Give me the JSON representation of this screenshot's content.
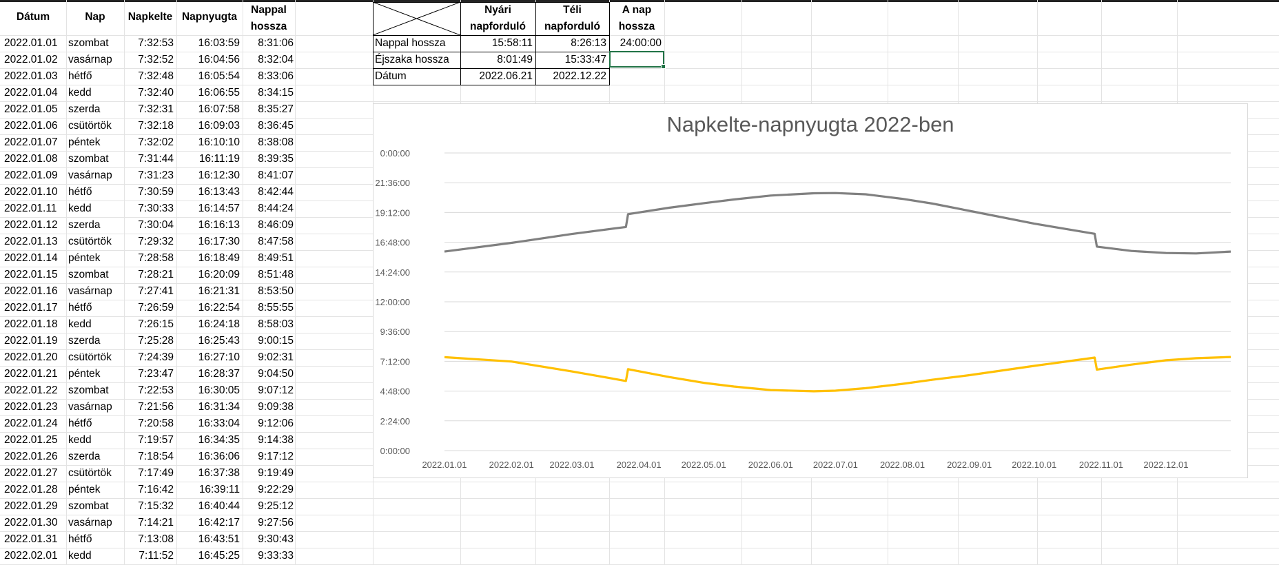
{
  "table": {
    "headers": {
      "date": "Dátum",
      "day": "Nap",
      "sunrise": "Napkelte",
      "sunset": "Napnyugta",
      "daylength_l1": "Nappal",
      "daylength_l2": "hossza"
    },
    "rows": [
      {
        "date": "2022.01.01",
        "day": "szombat",
        "sunrise": "7:32:53",
        "sunset": "16:03:59",
        "len": "8:31:06"
      },
      {
        "date": "2022.01.02",
        "day": "vasárnap",
        "sunrise": "7:32:52",
        "sunset": "16:04:56",
        "len": "8:32:04"
      },
      {
        "date": "2022.01.03",
        "day": "hétfő",
        "sunrise": "7:32:48",
        "sunset": "16:05:54",
        "len": "8:33:06"
      },
      {
        "date": "2022.01.04",
        "day": "kedd",
        "sunrise": "7:32:40",
        "sunset": "16:06:55",
        "len": "8:34:15"
      },
      {
        "date": "2022.01.05",
        "day": "szerda",
        "sunrise": "7:32:31",
        "sunset": "16:07:58",
        "len": "8:35:27"
      },
      {
        "date": "2022.01.06",
        "day": "csütörtök",
        "sunrise": "7:32:18",
        "sunset": "16:09:03",
        "len": "8:36:45"
      },
      {
        "date": "2022.01.07",
        "day": "péntek",
        "sunrise": "7:32:02",
        "sunset": "16:10:10",
        "len": "8:38:08"
      },
      {
        "date": "2022.01.08",
        "day": "szombat",
        "sunrise": "7:31:44",
        "sunset": "16:11:19",
        "len": "8:39:35"
      },
      {
        "date": "2022.01.09",
        "day": "vasárnap",
        "sunrise": "7:31:23",
        "sunset": "16:12:30",
        "len": "8:41:07"
      },
      {
        "date": "2022.01.10",
        "day": "hétfő",
        "sunrise": "7:30:59",
        "sunset": "16:13:43",
        "len": "8:42:44"
      },
      {
        "date": "2022.01.11",
        "day": "kedd",
        "sunrise": "7:30:33",
        "sunset": "16:14:57",
        "len": "8:44:24"
      },
      {
        "date": "2022.01.12",
        "day": "szerda",
        "sunrise": "7:30:04",
        "sunset": "16:16:13",
        "len": "8:46:09"
      },
      {
        "date": "2022.01.13",
        "day": "csütörtök",
        "sunrise": "7:29:32",
        "sunset": "16:17:30",
        "len": "8:47:58"
      },
      {
        "date": "2022.01.14",
        "day": "péntek",
        "sunrise": "7:28:58",
        "sunset": "16:18:49",
        "len": "8:49:51"
      },
      {
        "date": "2022.01.15",
        "day": "szombat",
        "sunrise": "7:28:21",
        "sunset": "16:20:09",
        "len": "8:51:48"
      },
      {
        "date": "2022.01.16",
        "day": "vasárnap",
        "sunrise": "7:27:41",
        "sunset": "16:21:31",
        "len": "8:53:50"
      },
      {
        "date": "2022.01.17",
        "day": "hétfő",
        "sunrise": "7:26:59",
        "sunset": "16:22:54",
        "len": "8:55:55"
      },
      {
        "date": "2022.01.18",
        "day": "kedd",
        "sunrise": "7:26:15",
        "sunset": "16:24:18",
        "len": "8:58:03"
      },
      {
        "date": "2022.01.19",
        "day": "szerda",
        "sunrise": "7:25:28",
        "sunset": "16:25:43",
        "len": "9:00:15"
      },
      {
        "date": "2022.01.20",
        "day": "csütörtök",
        "sunrise": "7:24:39",
        "sunset": "16:27:10",
        "len": "9:02:31"
      },
      {
        "date": "2022.01.21",
        "day": "péntek",
        "sunrise": "7:23:47",
        "sunset": "16:28:37",
        "len": "9:04:50"
      },
      {
        "date": "2022.01.22",
        "day": "szombat",
        "sunrise": "7:22:53",
        "sunset": "16:30:05",
        "len": "9:07:12"
      },
      {
        "date": "2022.01.23",
        "day": "vasárnap",
        "sunrise": "7:21:56",
        "sunset": "16:31:34",
        "len": "9:09:38"
      },
      {
        "date": "2022.01.24",
        "day": "hétfő",
        "sunrise": "7:20:58",
        "sunset": "16:33:04",
        "len": "9:12:06"
      },
      {
        "date": "2022.01.25",
        "day": "kedd",
        "sunrise": "7:19:57",
        "sunset": "16:34:35",
        "len": "9:14:38"
      },
      {
        "date": "2022.01.26",
        "day": "szerda",
        "sunrise": "7:18:54",
        "sunset": "16:36:06",
        "len": "9:17:12"
      },
      {
        "date": "2022.01.27",
        "day": "csütörtök",
        "sunrise": "7:17:49",
        "sunset": "16:37:38",
        "len": "9:19:49"
      },
      {
        "date": "2022.01.28",
        "day": "péntek",
        "sunrise": "7:16:42",
        "sunset": "16:39:11",
        "len": "9:22:29"
      },
      {
        "date": "2022.01.29",
        "day": "szombat",
        "sunrise": "7:15:32",
        "sunset": "16:40:44",
        "len": "9:25:12"
      },
      {
        "date": "2022.01.30",
        "day": "vasárnap",
        "sunrise": "7:14:21",
        "sunset": "16:42:17",
        "len": "9:27:56"
      },
      {
        "date": "2022.01.31",
        "day": "hétfő",
        "sunrise": "7:13:08",
        "sunset": "16:43:51",
        "len": "9:30:43"
      },
      {
        "date": "2022.02.01",
        "day": "kedd",
        "sunrise": "7:11:52",
        "sunset": "16:45:25",
        "len": "9:33:33"
      }
    ]
  },
  "solstice": {
    "col_summer_l1": "Nyári",
    "col_summer_l2": "napforduló",
    "col_winter_l1": "Téli",
    "col_winter_l2": "napforduló",
    "col_daylen_l1": "A nap",
    "col_daylen_l2": "hossza",
    "rows": [
      {
        "label": "Nappal hossza",
        "summer": "15:58:11",
        "winter": "8:26:13",
        "extra": "24:00:00"
      },
      {
        "label": "Éjszaka hossza",
        "summer": "8:01:49",
        "winter": "15:33:47",
        "extra": ""
      },
      {
        "label": "Dátum",
        "summer": "2022.06.21",
        "winter": "2022.12.22",
        "extra": ""
      }
    ]
  },
  "colors": {
    "sunrise_line": "#FFC000",
    "sunset_line": "#808080",
    "selection": "#217346"
  },
  "chart_data": {
    "type": "line",
    "title": "Napkelte-napnyugta 2022-ben",
    "x_tick_labels": [
      "2022.01.01",
      "2022.02.01",
      "2022.03.01",
      "2022.04.01",
      "2022.05.01",
      "2022.06.01",
      "2022.07.01",
      "2022.08.01",
      "2022.09.01",
      "2022.10.01",
      "2022.11.01",
      "2022.12.01"
    ],
    "y_tick_labels": [
      "0:00:00",
      "2:24:00",
      "4:48:00",
      "7:12:00",
      "9:36:00",
      "12:00:00",
      "14:24:00",
      "16:48:00",
      "19:12:00",
      "21:36:00",
      "0:00:00"
    ],
    "ylim_hours": [
      0,
      24
    ],
    "y_tick_step_hours": 2.4,
    "grid": "horizontal",
    "series": [
      {
        "x": [
          "2022.01.01",
          "2022.02.01",
          "2022.03.01",
          "2022.03.26",
          "2022.03.27",
          "2022.04.15",
          "2022.05.01",
          "2022.05.15",
          "2022.06.01",
          "2022.06.21",
          "2022.07.01",
          "2022.07.15",
          "2022.08.01",
          "2022.08.15",
          "2022.09.01",
          "2022.10.01",
          "2022.10.29",
          "2022.10.30",
          "2022.11.15",
          "2022.12.01",
          "2022.12.15",
          "2022.12.31"
        ],
        "values": [
          "16:03",
          "16:45",
          "17:28",
          "18:02",
          "19:04",
          "19:35",
          "19:57",
          "20:15",
          "20:34",
          "20:45",
          "20:46",
          "20:40",
          "20:18",
          "19:55",
          "19:20",
          "18:18",
          "17:29",
          "16:27",
          "16:06",
          "15:56",
          "15:54",
          "16:03"
        ]
      },
      {
        "x": [
          "2022.01.01",
          "2022.02.01",
          "2022.03.01",
          "2022.03.26",
          "2022.03.27",
          "2022.04.15",
          "2022.05.01",
          "2022.05.15",
          "2022.06.01",
          "2022.06.21",
          "2022.07.01",
          "2022.07.15",
          "2022.08.01",
          "2022.08.15",
          "2022.09.01",
          "2022.10.01",
          "2022.10.29",
          "2022.10.30",
          "2022.11.15",
          "2022.12.01",
          "2022.12.15",
          "2022.12.31"
        ],
        "values": [
          "7:32",
          "7:11",
          "6:23",
          "5:37",
          "6:34",
          "5:56",
          "5:28",
          "5:10",
          "4:53",
          "4:47",
          "4:50",
          "5:02",
          "5:23",
          "5:43",
          "6:05",
          "6:50",
          "7:30",
          "6:32",
          "6:56",
          "7:17",
          "7:27",
          "7:33"
        ]
      }
    ]
  }
}
